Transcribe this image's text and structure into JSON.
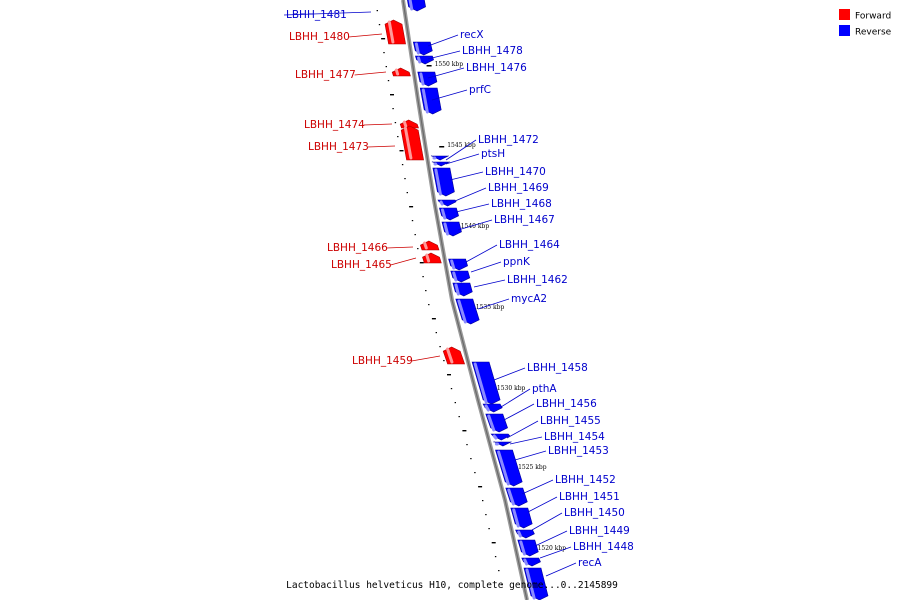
{
  "colors": {
    "forward": "#ff0000",
    "forward_label": "#cc0000",
    "reverse": "#0000ff",
    "reverse_label": "#0000cc",
    "axis": "#808080"
  },
  "legend": {
    "forward_label": "Forward",
    "reverse_label": "Reverse"
  },
  "caption": "Lactobacillus helveticus H10, complete genome...0..2145899",
  "scale_labels": [
    "1550 kbp",
    "1545 kbp",
    "1540 kbp",
    "1535 kbp",
    "1530 kbp",
    "1525 kbp",
    "1520 kbp"
  ],
  "genes": [
    {
      "name": "LBHH_1481",
      "strand": "reverse"
    },
    {
      "name": "LBHH_1480",
      "strand": "forward"
    },
    {
      "name": "recX",
      "strand": "reverse"
    },
    {
      "name": "LBHH_1478",
      "strand": "reverse"
    },
    {
      "name": "LBHH_1477",
      "strand": "forward"
    },
    {
      "name": "LBHH_1476",
      "strand": "reverse"
    },
    {
      "name": "prfC",
      "strand": "reverse"
    },
    {
      "name": "LBHH_1474",
      "strand": "forward"
    },
    {
      "name": "LBHH_1473",
      "strand": "forward"
    },
    {
      "name": "LBHH_1472",
      "strand": "reverse"
    },
    {
      "name": "ptsH",
      "strand": "reverse"
    },
    {
      "name": "LBHH_1470",
      "strand": "reverse"
    },
    {
      "name": "LBHH_1469",
      "strand": "reverse"
    },
    {
      "name": "LBHH_1468",
      "strand": "reverse"
    },
    {
      "name": "LBHH_1467",
      "strand": "reverse"
    },
    {
      "name": "LBHH_1466",
      "strand": "forward"
    },
    {
      "name": "LBHH_1465",
      "strand": "forward"
    },
    {
      "name": "LBHH_1464",
      "strand": "reverse"
    },
    {
      "name": "ppnK",
      "strand": "reverse"
    },
    {
      "name": "LBHH_1462",
      "strand": "reverse"
    },
    {
      "name": "mycA2",
      "strand": "reverse"
    },
    {
      "name": "LBHH_1459",
      "strand": "forward"
    },
    {
      "name": "LBHH_1458",
      "strand": "reverse"
    },
    {
      "name": "pthA",
      "strand": "reverse"
    },
    {
      "name": "LBHH_1456",
      "strand": "reverse"
    },
    {
      "name": "LBHH_1455",
      "strand": "reverse"
    },
    {
      "name": "LBHH_1454",
      "strand": "reverse"
    },
    {
      "name": "LBHH_1453",
      "strand": "reverse"
    },
    {
      "name": "LBHH_1452",
      "strand": "reverse"
    },
    {
      "name": "LBHH_1451",
      "strand": "reverse"
    },
    {
      "name": "LBHH_1450",
      "strand": "reverse"
    },
    {
      "name": "LBHH_1449",
      "strand": "reverse"
    },
    {
      "name": "LBHH_1448",
      "strand": "reverse"
    },
    {
      "name": "recA",
      "strand": "reverse"
    }
  ]
}
